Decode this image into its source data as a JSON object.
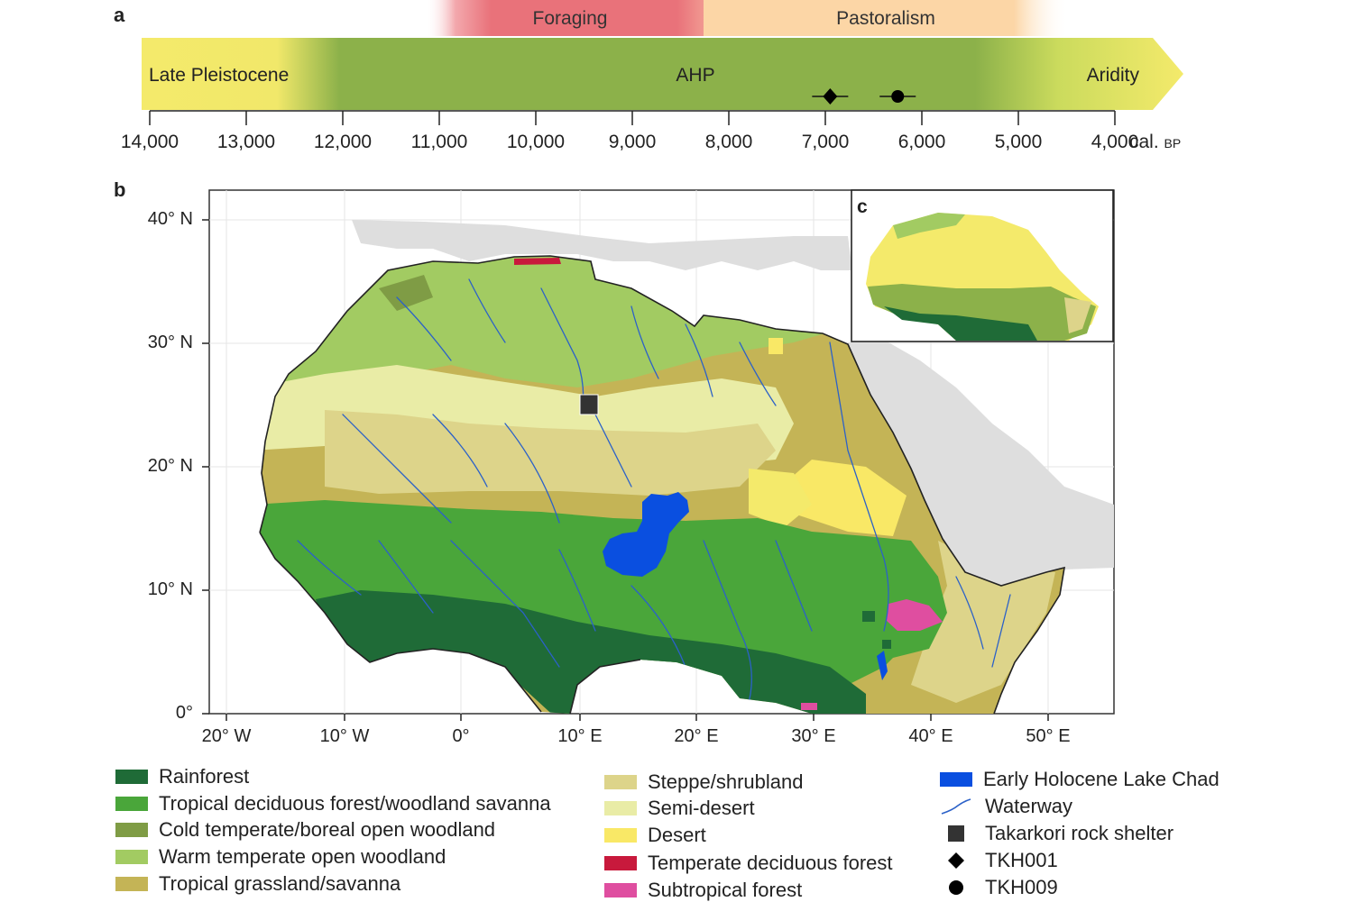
{
  "panel_a": {
    "letter": "a",
    "phases": {
      "foraging": "Foraging",
      "pastoralism": "Pastoralism"
    },
    "bar_labels": {
      "left": "Late Pleistocene",
      "middle": "AHP",
      "right": "Aridity"
    },
    "ticks": [
      "14,000",
      "13,000",
      "12,000",
      "11,000",
      "10,000",
      "9,000",
      "8,000",
      "7,000",
      "6,000",
      "5,000",
      "4,000"
    ],
    "unit_main": "cal.",
    "unit_small": "BP",
    "markers": [
      {
        "name": "TKH001",
        "symbol": "diamond",
        "age": 6950
      },
      {
        "name": "TKH009",
        "symbol": "circle",
        "age": 6250
      }
    ],
    "colors": {
      "late_pleistocene": "#f4ea6b",
      "ahp": "#8cb14a",
      "foraging": "#e9727a",
      "pastoralism": "#fcd6a6"
    }
  },
  "panel_b": {
    "letter": "b",
    "lat_labels": [
      "40° N",
      "30° N",
      "20° N",
      "10° N",
      "0°"
    ],
    "lon_labels": [
      "20° W",
      "10° W",
      "0°",
      "10° E",
      "20° E",
      "30° E",
      "40° E",
      "50° E"
    ]
  },
  "panel_c": {
    "letter": "c"
  },
  "legend": {
    "col1": [
      {
        "label": "Rainforest",
        "color": "#1f6b37"
      },
      {
        "label": "Tropical deciduous forest/woodland savanna",
        "color": "#4aa63a"
      },
      {
        "label": "Cold temperate/boreal open woodland",
        "color": "#7f9c45"
      },
      {
        "label": "Warm temperate open woodland",
        "color": "#a2cb62"
      },
      {
        "label": "Tropical grassland/savanna",
        "color": "#c4b456"
      }
    ],
    "col2": [
      {
        "label": "Steppe/shrubland",
        "color": "#ddd48a"
      },
      {
        "label": "Semi-desert",
        "color": "#e9eca6"
      },
      {
        "label": "Desert",
        "color": "#f9e866"
      },
      {
        "label": "Temperate deciduous forest",
        "color": "#c8193c"
      },
      {
        "label": "Subtropical forest",
        "color": "#df4ea0"
      }
    ],
    "col3": [
      {
        "label": "Early Holocene Lake Chad",
        "symbol": "lake",
        "color": "#0a4fe0"
      },
      {
        "label": "Waterway",
        "symbol": "waterway-line",
        "color": "#2b61c8"
      },
      {
        "label": "Takarkori rock shelter",
        "symbol": "square",
        "color": "#333333"
      },
      {
        "label": "TKH001",
        "symbol": "diamond",
        "color": "#000000"
      },
      {
        "label": "TKH009",
        "symbol": "circle",
        "color": "#000000"
      }
    ]
  }
}
